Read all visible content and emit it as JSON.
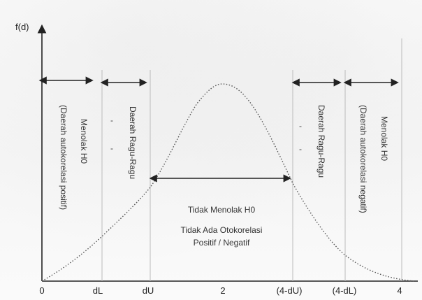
{
  "axes": {
    "y_label": "f(d)",
    "x_ticks": [
      "0",
      "dL",
      "dU",
      "2",
      "(4-dU)",
      "(4-dL)",
      "4"
    ]
  },
  "zones": {
    "left_outer": {
      "line1": "(Daerah autokorelasi positif)",
      "line2": "Menolak H0"
    },
    "left_inner": {
      "line1": "Daerah Ragu-Ragu",
      "marks": [
        "-",
        "-"
      ]
    },
    "center": {
      "line1": "Tidak Menolak H0",
      "line2": "Tidak Ada Otokorelasi",
      "line3": "Positif / Negatif"
    },
    "right_inner": {
      "line1": "Daerah Ragu-Ragu",
      "marks": [
        "-",
        "-"
      ]
    },
    "right_outer": {
      "line1": "(Daerah autokorelasi negatif)",
      "line2": "Menolak H0"
    }
  },
  "colors": {
    "ink": "#222222",
    "curve": "#555555",
    "divider": "#bbbbbb"
  }
}
